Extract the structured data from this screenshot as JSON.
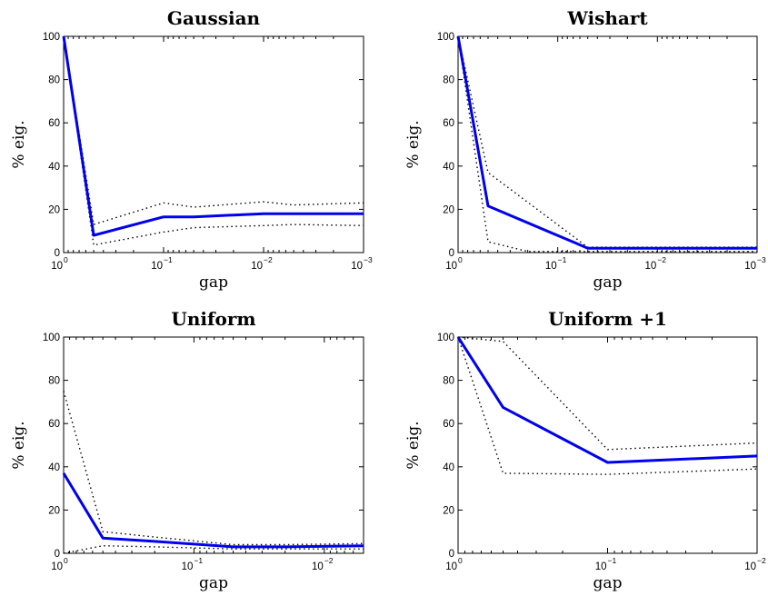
{
  "chart_data": [
    {
      "type": "line",
      "title": "Gaussian",
      "xlabel": "gap",
      "ylabel": "% eig.",
      "x_scale": "log",
      "x_reversed": true,
      "xlim": [
        1,
        0.001
      ],
      "ylim": [
        0,
        100
      ],
      "xticks": [
        "10^0",
        "10^-1",
        "10^-2",
        "10^-3"
      ],
      "yticks": [
        0,
        20,
        40,
        60,
        80,
        100
      ],
      "series": [
        {
          "style": "mean",
          "x": [
            1,
            0.5,
            0.1,
            0.05,
            0.01,
            0.005,
            0.001
          ],
          "values": [
            100,
            8,
            16.5,
            16.5,
            18,
            18,
            18
          ]
        },
        {
          "style": "upper",
          "x": [
            1,
            0.5,
            0.1,
            0.05,
            0.01,
            0.005,
            0.001
          ],
          "values": [
            100,
            13,
            23,
            21,
            23.5,
            22,
            23
          ]
        },
        {
          "style": "lower",
          "x": [
            1,
            0.5,
            0.1,
            0.05,
            0.01,
            0.005,
            0.001
          ],
          "values": [
            100,
            3.5,
            9.5,
            11.5,
            12.5,
            13,
            12.5
          ]
        }
      ],
      "colors": {
        "mean": "#0000ee",
        "bounds": "#000000"
      }
    },
    {
      "type": "line",
      "title": "Wishart",
      "xlabel": "gap",
      "ylabel": "% eig.",
      "x_scale": "log",
      "x_reversed": true,
      "xlim": [
        1,
        0.001
      ],
      "ylim": [
        0,
        100
      ],
      "xticks": [
        "10^0",
        "10^-1",
        "10^-2",
        "10^-3"
      ],
      "yticks": [
        0,
        20,
        40,
        60,
        80,
        100
      ],
      "series": [
        {
          "style": "mean",
          "x": [
            1,
            0.5,
            0.05,
            0.01,
            0.001
          ],
          "values": [
            100,
            21.5,
            2,
            2,
            2
          ]
        },
        {
          "style": "upper",
          "x": [
            1,
            0.5,
            0.05,
            0.01,
            0.001
          ],
          "values": [
            100,
            37,
            2.5,
            2.5,
            2.5
          ]
        },
        {
          "style": "lower",
          "x": [
            1,
            0.5,
            0.2,
            0.05,
            0.01,
            0.001
          ],
          "values": [
            100,
            5,
            0.5,
            0.5,
            0.5,
            0.5
          ]
        }
      ],
      "colors": {
        "mean": "#0000ee",
        "bounds": "#000000"
      }
    },
    {
      "type": "line",
      "title": "Uniform",
      "xlabel": "gap",
      "ylabel": "% eig.",
      "x_scale": "log",
      "x_reversed": true,
      "xlim": [
        1,
        0.005
      ],
      "ylim": [
        0,
        100
      ],
      "xticks": [
        "10^0",
        "10^-1",
        "10^-2"
      ],
      "yticks": [
        0,
        20,
        40,
        60,
        80,
        100
      ],
      "series": [
        {
          "style": "mean",
          "x": [
            1,
            0.5,
            0.2,
            0.05,
            0.02,
            0.005
          ],
          "values": [
            37,
            7,
            5.5,
            3,
            3,
            3.5
          ]
        },
        {
          "style": "upper",
          "x": [
            1,
            0.5,
            0.2,
            0.05,
            0.02,
            0.005
          ],
          "values": [
            75,
            10,
            7.5,
            4,
            4,
            4.5
          ]
        },
        {
          "style": "lower",
          "x": [
            1,
            0.5,
            0.2,
            0.05,
            0.02,
            0.005
          ],
          "values": [
            0,
            3.5,
            3,
            2,
            2,
            2
          ]
        }
      ],
      "colors": {
        "mean": "#0000ee",
        "bounds": "#000000"
      }
    },
    {
      "type": "line",
      "title": "Uniform +1",
      "xlabel": "gap",
      "ylabel": "% eig.",
      "x_scale": "log",
      "x_reversed": true,
      "xlim": [
        1,
        0.01
      ],
      "ylim": [
        0,
        100
      ],
      "xticks": [
        "10^0",
        "10^-1",
        "10^-2"
      ],
      "yticks": [
        0,
        20,
        40,
        60,
        80,
        100
      ],
      "series": [
        {
          "style": "mean",
          "x": [
            1,
            0.5,
            0.1,
            0.01
          ],
          "values": [
            100,
            67.5,
            42,
            45
          ]
        },
        {
          "style": "upper",
          "x": [
            1,
            0.5,
            0.1,
            0.01
          ],
          "values": [
            100,
            98,
            48,
            51
          ]
        },
        {
          "style": "lower",
          "x": [
            1,
            0.5,
            0.1,
            0.01
          ],
          "values": [
            100,
            37,
            36.5,
            39
          ]
        }
      ],
      "colors": {
        "mean": "#0000ee",
        "bounds": "#000000"
      }
    }
  ]
}
